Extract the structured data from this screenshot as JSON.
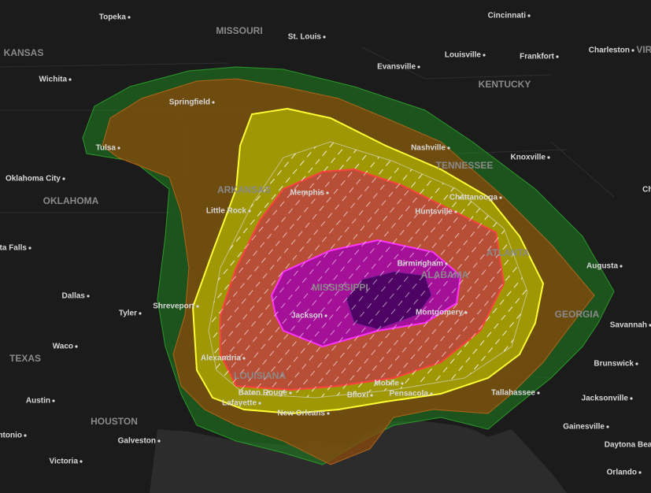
{
  "states": [
    "MISSOURI",
    "KANSAS",
    "KENTUCKY",
    "VIRGINIA",
    "TENNESSEE",
    "ARKANSAS",
    "OKLAHOMA",
    "MISSISSIPPI",
    "ALABAMA",
    "GEORGIA",
    "LOUISIANA",
    "TEXAS",
    "ATLANTA",
    "HOUSTON"
  ],
  "cities": [
    "Topeka",
    "St. Louis",
    "Cincinnati",
    "Louisville",
    "Frankfort",
    "Charleston",
    "Evansville",
    "Wichita",
    "Springfield",
    "Tulsa",
    "Nashville",
    "Knoxville",
    "Oklahoma City",
    "Memphis",
    "Chattanooga",
    "Little Rock",
    "Huntsville",
    "Charlotte",
    "Wichita Falls",
    "Birmingham",
    "Augusta",
    "Dallas",
    "Shreveport",
    "Tyler",
    "Jackson",
    "Montgomery",
    "Savannah",
    "Waco",
    "Alexandria",
    "Brunswick",
    "Mobile",
    "Austin",
    "Baton Rouge",
    "Biloxi",
    "Pensacola",
    "Tallahassee",
    "Lafayette",
    "Jacksonville",
    "New Orleans",
    "San Antonio",
    "Gainesville",
    "Galveston",
    "Victoria",
    "Daytona Beach",
    "Orlando"
  ]
}
